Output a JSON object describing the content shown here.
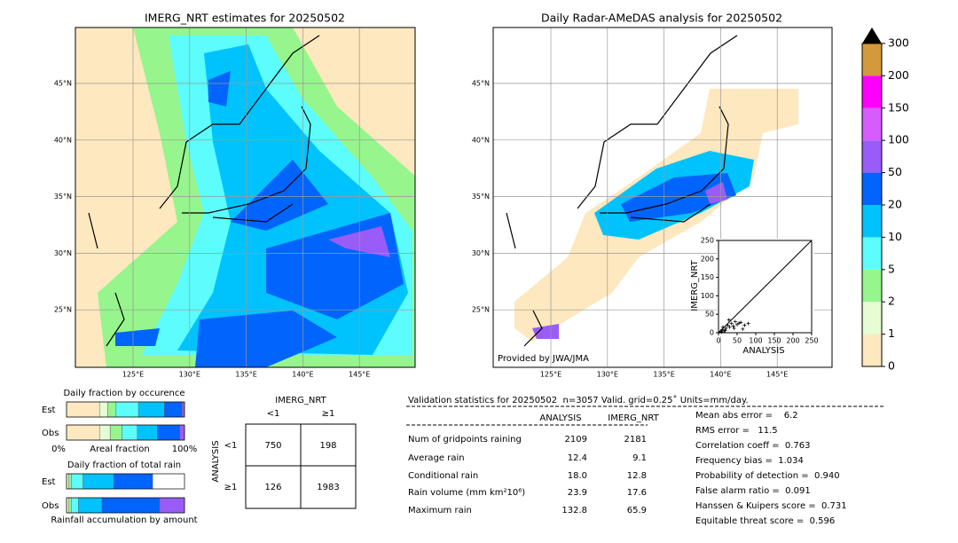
{
  "maps": [
    {
      "title": "IMERG_NRT estimates for 20250502"
    },
    {
      "title": "Daily Radar-AMeDAS analysis for 20250502",
      "credit": "Provided by JWA/JMA"
    }
  ],
  "lon_labels": [
    "125°E",
    "130°E",
    "135°E",
    "140°E",
    "145°E"
  ],
  "lat_labels": [
    "45°N",
    "40°N",
    "35°N",
    "30°N",
    "25°N"
  ],
  "colorbar": {
    "ticks": [
      0,
      1,
      2,
      5,
      10,
      20,
      50,
      100,
      150,
      200,
      300
    ],
    "colors": [
      "#fde8bf",
      "#e6fcd2",
      "#96f58c",
      "#5cfdfc",
      "#00c3fd",
      "#0064fd",
      "#9a5cf7",
      "#d65cfd",
      "#fd00fd",
      "#d4993c"
    ]
  },
  "scatter": {
    "xlabel": "ANALYSIS",
    "ylabel": "IMERG_NRT",
    "xlim": [
      0,
      250
    ],
    "ylim": [
      0,
      250
    ],
    "xticks": [
      0,
      50,
      100,
      150,
      200,
      250
    ],
    "yticks": [
      0,
      50,
      100,
      150,
      200,
      250
    ],
    "x": [
      5,
      10,
      15,
      20,
      25,
      30,
      35,
      40,
      45,
      50,
      60,
      70,
      8,
      12,
      28,
      55,
      42,
      18,
      80,
      65
    ],
    "y": [
      3,
      8,
      5,
      12,
      20,
      15,
      25,
      18,
      30,
      22,
      28,
      20,
      2,
      15,
      35,
      26,
      12,
      6,
      25,
      10
    ]
  },
  "occurrence": {
    "title": "Daily fraction by occurence",
    "rows": [
      {
        "label": "Est",
        "segments": [
          28,
          7,
          7,
          19,
          22,
          15,
          2
        ]
      },
      {
        "label": "Obs",
        "segments": [
          28,
          9,
          10,
          13,
          17,
          19,
          4
        ]
      }
    ],
    "axis_left": "0%",
    "axis_label": "Areal fraction",
    "axis_right": "100%"
  },
  "total_rain": {
    "title": "Daily fraction of total rain",
    "rows": [
      {
        "label": "Est",
        "segments": [
          0,
          2,
          2,
          10,
          26,
          33,
          0
        ]
      },
      {
        "label": "Obs",
        "segments": [
          0,
          2,
          2,
          6,
          20,
          49,
          21
        ]
      }
    ],
    "footer": "Rainfall accumulation by amount"
  },
  "contingency": {
    "col_title": "IMERG_NRT",
    "row_title": "ANALYSIS",
    "col_labels": [
      "<1",
      "≥1"
    ],
    "row_labels": [
      "<1",
      "≥1"
    ],
    "cells": [
      [
        750,
        198
      ],
      [
        126,
        1983
      ]
    ]
  },
  "stats": {
    "header": "Validation statistics for 20250502  n=3057 Valid. grid=0.25˚ Units=mm/day.",
    "columns": [
      "ANALYSIS",
      "IMERG_NRT"
    ],
    "rows": [
      {
        "label": "Num of gridpoints raining",
        "analysis": "2109",
        "imerg": "2181"
      },
      {
        "label": "Average rain",
        "analysis": "12.4",
        "imerg": "9.1"
      },
      {
        "label": "Conditional rain",
        "analysis": "18.0",
        "imerg": "12.8"
      },
      {
        "label": "Rain volume (mm km²10⁶)",
        "analysis": "23.9",
        "imerg": "17.6"
      },
      {
        "label": "Maximum rain",
        "analysis": "132.8",
        "imerg": "65.9"
      }
    ],
    "scores": [
      "Mean abs error =    6.2",
      "RMS error =   11.5",
      "Correlation coeff =  0.763",
      "Frequency bias =  1.034",
      "Probability of detection =  0.940",
      "False alarm ratio =  0.091",
      "Hanssen & Kuipers score =  0.731",
      "Equitable threat score =  0.596"
    ]
  }
}
